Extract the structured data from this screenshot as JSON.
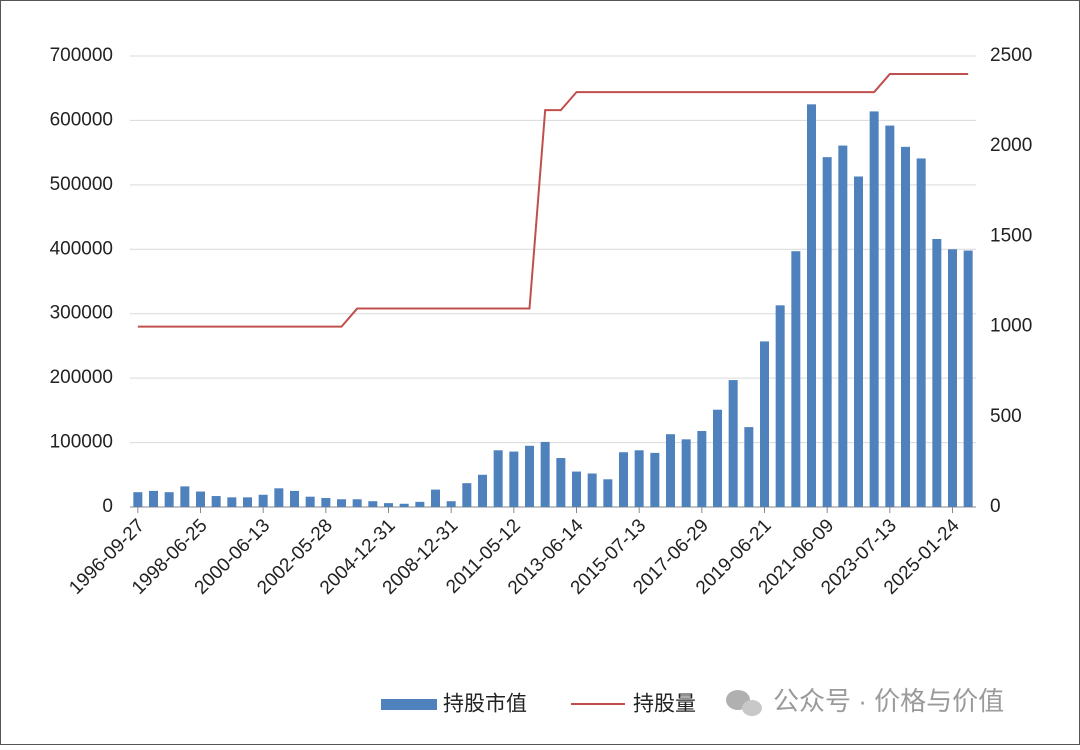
{
  "chart_data": {
    "type": "bar_line",
    "categories": [
      "1996-09-27",
      null,
      null,
      null,
      "1998-06-25",
      null,
      null,
      null,
      "2000-06-13",
      null,
      null,
      null,
      "2002-05-28",
      null,
      null,
      null,
      "2004-12-31",
      null,
      null,
      null,
      "2008-12-31",
      null,
      null,
      null,
      "2011-05-12",
      null,
      null,
      null,
      "2013-06-14",
      null,
      null,
      null,
      "2015-07-13",
      null,
      null,
      null,
      "2017-06-29",
      null,
      null,
      null,
      "2019-06-21",
      null,
      null,
      null,
      "2021-06-09",
      null,
      null,
      null,
      "2023-07-13",
      null,
      null,
      null,
      "2025-01-24",
      null
    ],
    "series": [
      {
        "name": "持股市值",
        "type": "bar",
        "color": "#4f81bd",
        "values": [
          23000,
          25000,
          23000,
          32000,
          24000,
          17000,
          15000,
          15000,
          19000,
          29000,
          25000,
          16000,
          14000,
          12000,
          12000,
          9000,
          6000,
          5000,
          8000,
          27000,
          9000,
          37000,
          50000,
          88000,
          86000,
          95000,
          101000,
          76000,
          55000,
          52000,
          43000,
          85000,
          88000,
          84000,
          113000,
          105000,
          118000,
          151000,
          197000,
          124000,
          257000,
          313000,
          397000,
          625000,
          543000,
          561000,
          513000,
          614000,
          592000,
          559000,
          541000,
          416000,
          400000,
          398000
        ]
      },
      {
        "name": "持股量",
        "type": "line",
        "axis": "y2",
        "color": "#c0504d",
        "values": [
          1000,
          1000,
          1000,
          1000,
          1000,
          1000,
          1000,
          1000,
          1000,
          1000,
          1000,
          1000,
          1000,
          1000,
          1100,
          1100,
          1100,
          1100,
          1100,
          1100,
          1100,
          1100,
          1100,
          1100,
          1100,
          1100,
          2200,
          2200,
          2300,
          2300,
          2300,
          2300,
          2300,
          2300,
          2300,
          2300,
          2300,
          2300,
          2300,
          2300,
          2300,
          2300,
          2300,
          2300,
          2300,
          2300,
          2300,
          2300,
          2400,
          2400,
          2400,
          2400,
          2400,
          2400
        ]
      }
    ],
    "ylim": [
      0,
      700000
    ],
    "yticks": [
      0,
      100000,
      200000,
      300000,
      400000,
      500000,
      600000,
      700000
    ],
    "y2lim": [
      0,
      2500
    ],
    "y2ticks": [
      0,
      500,
      1000,
      1500,
      2000,
      2500
    ],
    "grid": true,
    "legend": "bottom",
    "watermark": "公众号 · 价格与价值"
  }
}
